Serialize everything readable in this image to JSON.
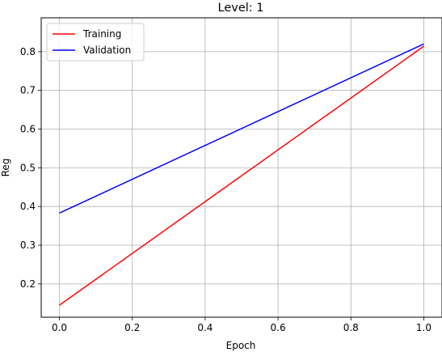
{
  "chart_data": {
    "type": "line",
    "title": "Level: 1",
    "xlabel": "Epoch",
    "ylabel": "Reg",
    "xlim": [
      -0.05,
      1.05
    ],
    "ylim": [
      0.114,
      0.8875
    ],
    "xticks": [
      0.0,
      0.2,
      0.4,
      0.6,
      0.8,
      1.0
    ],
    "xtick_labels": [
      "0.0",
      "0.2",
      "0.4",
      "0.6",
      "0.8",
      "1.0"
    ],
    "yticks": [
      0.2,
      0.3,
      0.4,
      0.5,
      0.6,
      0.7,
      0.8
    ],
    "ytick_labels": [
      "0.2",
      "0.3",
      "0.4",
      "0.5",
      "0.6",
      "0.7",
      "0.8"
    ],
    "grid": true,
    "legend_position": "upper-left",
    "series": [
      {
        "name": "Training",
        "color": "#ff0000",
        "x": [
          0.0,
          1.0
        ],
        "y": [
          0.145,
          0.814
        ]
      },
      {
        "name": "Validation",
        "color": "#0000ff",
        "x": [
          0.0,
          1.0
        ],
        "y": [
          0.383,
          0.82
        ]
      }
    ]
  }
}
